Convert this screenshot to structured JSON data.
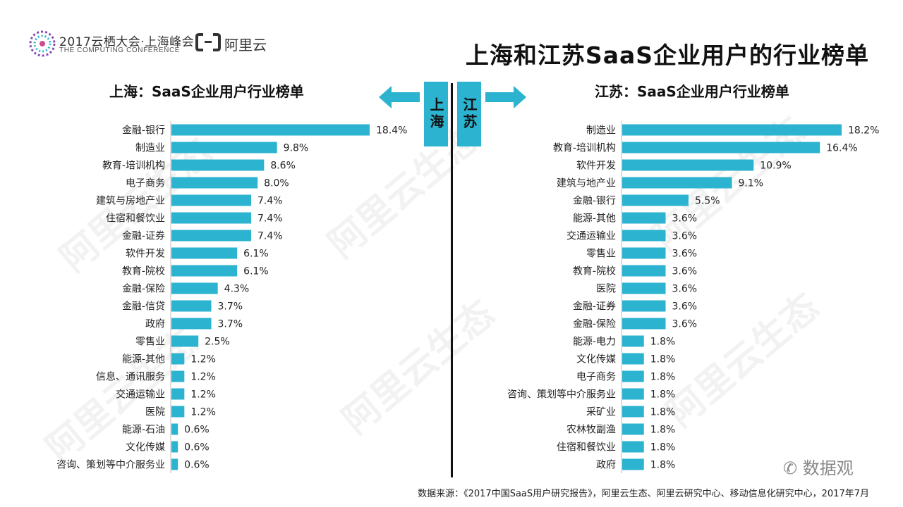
{
  "header": {
    "event_title": "2017云栖大会·上海峰会",
    "event_subtitle": "THE COMPUTING CONFERENCE",
    "aliyun_name": "阿里云",
    "main_title": "上海和江苏SaaS企业用户的行业榜单"
  },
  "tags": {
    "left": "上海",
    "right": "江苏"
  },
  "colors": {
    "bar": "#2bb3cf",
    "tag": "#2bb3cf",
    "divider": "#111111"
  },
  "icons": {
    "left_arrow": "arrow-left-icon",
    "right_arrow": "arrow-right-icon"
  },
  "watermark_text": "阿里云生态",
  "chart_data": [
    {
      "type": "bar",
      "orientation": "horizontal",
      "title": "上海：SaaS企业用户行业榜单",
      "unit": "%",
      "categories": [
        "金融-银行",
        "制造业",
        "教育-培训机构",
        "电子商务",
        "建筑与房地产业",
        "住宿和餐饮业",
        "金融-证券",
        "软件开发",
        "教育-院校",
        "金融-保险",
        "金融-信贷",
        "政府",
        "零售业",
        "能源-其他",
        "信息、通讯服务",
        "交通运输业",
        "医院",
        "能源-石油",
        "文化传媒",
        "咨询、策划等中介服务业"
      ],
      "values": [
        18.4,
        9.8,
        8.6,
        8.0,
        7.4,
        7.4,
        7.4,
        6.1,
        6.1,
        4.3,
        3.7,
        3.7,
        2.5,
        1.2,
        1.2,
        1.2,
        1.2,
        0.6,
        0.6,
        0.6
      ],
      "labels": [
        "18.4%",
        "9.8%",
        "8.6%",
        "8.0%",
        "7.4%",
        "7.4%",
        "7.4%",
        "6.1%",
        "6.1%",
        "4.3%",
        "3.7%",
        "3.7%",
        "2.5%",
        "1.2%",
        "1.2%",
        "1.2%",
        "1.2%",
        "0.6%",
        "0.6%",
        "0.6%"
      ]
    },
    {
      "type": "bar",
      "orientation": "horizontal",
      "title": "江苏：SaaS企业用户行业榜单",
      "unit": "%",
      "categories": [
        "制造业",
        "教育-培训机构",
        "软件开发",
        "建筑与地产业",
        "金融-银行",
        "能源-其他",
        "交通运输业",
        "零售业",
        "教育-院校",
        "医院",
        "金融-证券",
        "金融-保险",
        "能源-电力",
        "文化传媒",
        "电子商务",
        "咨询、策划等中介服务业",
        "采矿业",
        "农林牧副渔",
        "住宿和餐饮业",
        "政府"
      ],
      "values": [
        18.2,
        16.4,
        10.9,
        9.1,
        5.5,
        3.6,
        3.6,
        3.6,
        3.6,
        3.6,
        3.6,
        3.6,
        1.8,
        1.8,
        1.8,
        1.8,
        1.8,
        1.8,
        1.8,
        1.8
      ],
      "labels": [
        "18.2%",
        "16.4%",
        "10.9%",
        "9.1%",
        "5.5%",
        "3.6%",
        "3.6%",
        "3.6%",
        "3.6%",
        "3.6%",
        "3.6%",
        "3.6%",
        "1.8%",
        "1.8%",
        "1.8%",
        "1.8%",
        "1.8%",
        "1.8%",
        "1.8%",
        "1.8%"
      ]
    }
  ],
  "footer": {
    "source": "数据来源：《2017中国SaaS用户研究报告》，阿里云生态、阿里云研究中心、移动信息化研究中心，2017年7月",
    "wechat_account": "数据观"
  }
}
